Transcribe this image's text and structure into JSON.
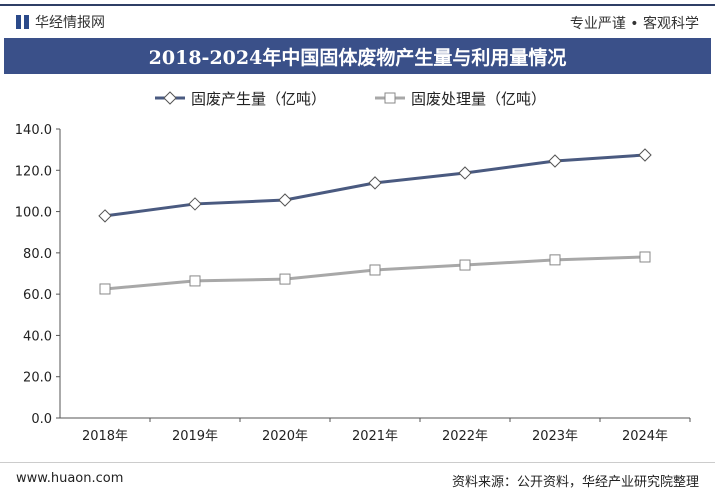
{
  "header": {
    "logo_text": "华经情报网",
    "slogan": "专业严谨 • 客观科学"
  },
  "footer": {
    "website": "www.huaon.com",
    "source": "资料来源：公开资料，华经产业研究院整理"
  },
  "chart_data": {
    "type": "line",
    "title": "2018-2024年中国固体废物产生量与利用量情况",
    "categories": [
      "2018年",
      "2019年",
      "2020年",
      "2021年",
      "2022年",
      "2023年",
      "2024年"
    ],
    "series": [
      {
        "name": "固废产生量（亿吨）",
        "color": "#4a5a80",
        "marker": "diamond",
        "values": [
          97.9,
          103.7,
          105.6,
          113.9,
          118.7,
          124.5,
          127.4
        ]
      },
      {
        "name": "固废处理量（亿吨）",
        "color": "#a8a8a8",
        "marker": "square",
        "values": [
          62.5,
          66.4,
          67.3,
          71.7,
          74.1,
          76.6,
          78.0
        ]
      }
    ],
    "ylim": [
      0,
      140
    ],
    "yticks": [
      "0.0",
      "20.0",
      "40.0",
      "60.0",
      "80.0",
      "100.0",
      "120.0",
      "140.0"
    ],
    "legend": "top-center",
    "grid": false
  }
}
